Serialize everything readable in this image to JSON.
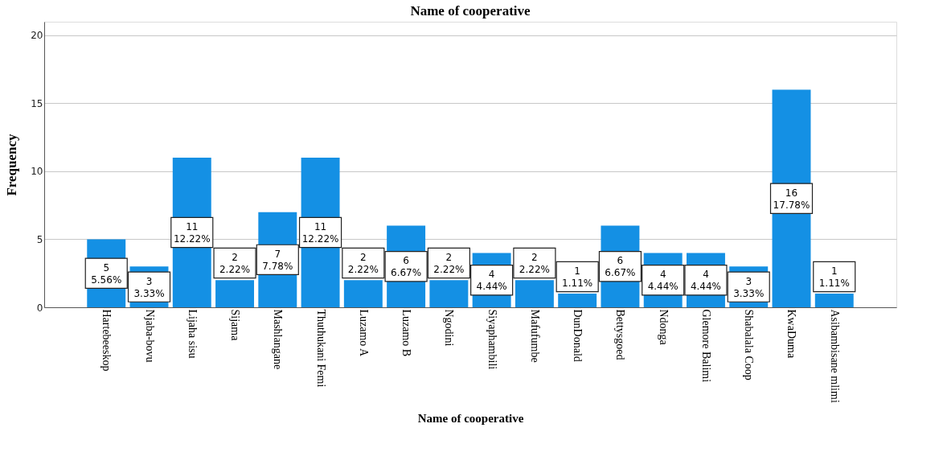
{
  "chart_data": {
    "type": "bar",
    "title": "Name of cooperative",
    "xlabel": "Name of cooperative",
    "ylabel": "Frequency",
    "categories": [
      "Hartebeeskop",
      "Njaba-bovu",
      "Lijaha sisu",
      "Sijama",
      "Mashlangane",
      "Thuthukani Femi",
      "Luzamo A",
      "Luzamo B",
      "Ngodini",
      "Siyaphambili",
      "Mafufumbe",
      "DunDonald",
      "Bettysgoed",
      "Ndonga",
      "Glemore Balimi",
      "Shabalala Coop",
      "KwaDuma",
      "Asibambisane mlimi"
    ],
    "values": [
      5,
      3,
      11,
      2,
      7,
      11,
      2,
      6,
      2,
      4,
      2,
      1,
      6,
      4,
      4,
      3,
      16,
      1
    ],
    "value_labels": [
      "5\n5.56%",
      "3\n3.33%",
      "11\n12.22%",
      "2\n2.22%",
      "7\n7.78%",
      "11\n12.22%",
      "2\n2.22%",
      "6\n6.67%",
      "2\n2.22%",
      "4\n4.44%",
      "2\n2.22%",
      "1\n1.11%",
      "6\n6.67%",
      "4\n4.44%",
      "4\n4.44%",
      "3\n3.33%",
      "16\n17.78%",
      "1\n1.11%"
    ],
    "color": "#1490e4",
    "ylim": [
      0,
      21
    ],
    "yticks": [
      0,
      5,
      10,
      15,
      20
    ],
    "grid": "y"
  }
}
